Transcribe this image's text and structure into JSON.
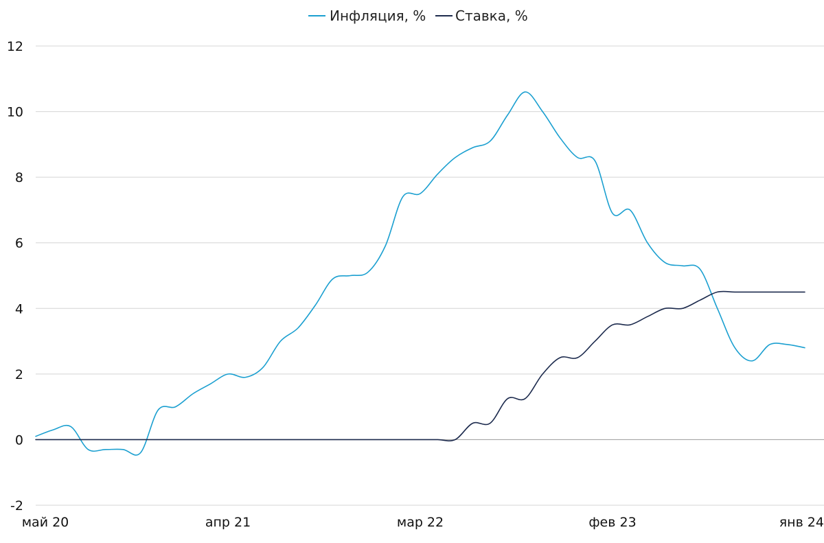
{
  "chart_data": {
    "type": "line",
    "title": "",
    "xlabel": "",
    "ylabel": "",
    "ylim": [
      -2,
      12
    ],
    "yticks": [
      "-2",
      "0",
      "2",
      "4",
      "6",
      "8",
      "10",
      "12"
    ],
    "xticks": [
      {
        "label": "май 20",
        "x": "2020-05"
      },
      {
        "label": "апр 21",
        "x": "2021-04"
      },
      {
        "label": "мар 22",
        "x": "2022-03"
      },
      {
        "label": "фев 23",
        "x": "2023-02"
      },
      {
        "label": "янв 24",
        "x": "2024-01"
      }
    ],
    "grid": true,
    "legend_position": "top",
    "x": [
      "2020-05",
      "2020-06",
      "2020-07",
      "2020-08",
      "2020-09",
      "2020-10",
      "2020-11",
      "2020-12",
      "2021-01",
      "2021-02",
      "2021-03",
      "2021-04",
      "2021-05",
      "2021-06",
      "2021-07",
      "2021-08",
      "2021-09",
      "2021-10",
      "2021-11",
      "2021-12",
      "2022-01",
      "2022-02",
      "2022-03",
      "2022-04",
      "2022-05",
      "2022-06",
      "2022-07",
      "2022-08",
      "2022-09",
      "2022-10",
      "2022-11",
      "2022-12",
      "2023-01",
      "2023-02",
      "2023-03",
      "2023-04",
      "2023-05",
      "2023-06",
      "2023-07",
      "2023-08",
      "2023-09",
      "2023-10",
      "2023-11",
      "2023-12",
      "2024-01"
    ],
    "series": [
      {
        "name": "Инфляция, %",
        "color": "#1a9fd0",
        "values": [
          0.1,
          0.3,
          0.4,
          -0.3,
          -0.3,
          -0.3,
          -0.4,
          0.9,
          1.0,
          1.4,
          1.7,
          2.0,
          1.9,
          2.2,
          3.0,
          3.4,
          4.1,
          4.9,
          5.0,
          5.1,
          5.9,
          7.4,
          7.5,
          8.1,
          8.6,
          8.9,
          9.1,
          9.9,
          10.6,
          10.0,
          9.2,
          8.6,
          8.5,
          6.9,
          7.0,
          6.0,
          5.4,
          5.3,
          5.2,
          4.0,
          2.8,
          2.4,
          2.9,
          2.9,
          2.8
        ]
      },
      {
        "name": "Ставка, %",
        "color": "#1c2a4d",
        "values": [
          0,
          0,
          0,
          0,
          0,
          0,
          0,
          0,
          0,
          0,
          0,
          0,
          0,
          0,
          0,
          0,
          0,
          0,
          0,
          0,
          0,
          0,
          0,
          0,
          0,
          0.5,
          0.5,
          1.25,
          1.25,
          2.0,
          2.5,
          2.5,
          3.0,
          3.5,
          3.5,
          3.75,
          4.0,
          4.0,
          4.25,
          4.5,
          4.5,
          4.5,
          4.5,
          4.5,
          4.5
        ]
      }
    ]
  }
}
